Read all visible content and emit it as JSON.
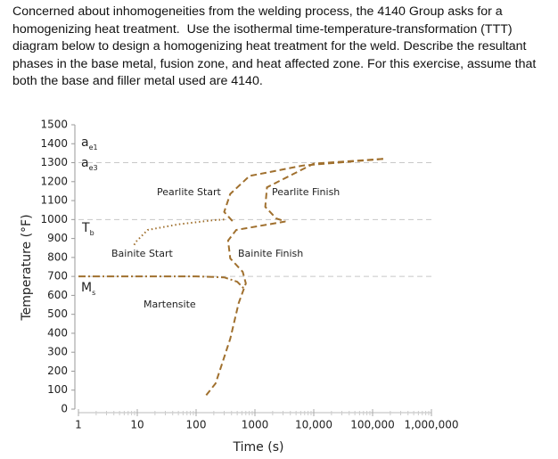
{
  "question": {
    "lines": [
      "Concerned about inhomogeneities from the welding process, the 4140 Group asks for a",
      "homogenizing heat treatment.  Use the isothermal time-temperature-transformation (TTT)",
      "diagram below to design a homogenizing heat treatment for the weld. Describe the resultant",
      "phases in the base metal, fusion zone, and heat affected zone. For this exercise, assume that",
      "both the base and filler metal used are 4140."
    ]
  },
  "chart_data": {
    "type": "line",
    "x_label": "Time (s)",
    "y_label": "Temperature (°F)",
    "x_log": true,
    "xlim": [
      1,
      1000000
    ],
    "xticks": [
      1,
      10,
      100,
      1000,
      {
        "value": 10000,
        "label": "10,000"
      },
      {
        "value": 100000,
        "label": "100,000"
      },
      {
        "value": 1000000,
        "label": "1,000,000"
      }
    ],
    "ylim": [
      0,
      1500
    ],
    "yticks": [
      0,
      100,
      200,
      300,
      400,
      500,
      600,
      700,
      800,
      900,
      1000,
      1100,
      1200,
      1300,
      1400,
      1500
    ],
    "reference_lines": [
      1300,
      1000,
      700
    ],
    "series": [
      {
        "color": "#a0702e",
        "style": "dashed",
        "x": [
          151000,
          6600,
          810,
          380,
          300,
          435
        ],
        "values": [
          1320,
          1285,
          1230,
          1135,
          1040,
          985
        ]
      },
      {
        "color": "#a0702e",
        "style": "dotted",
        "x": [
          300,
          200,
          50,
          15,
          9.3,
          8.7
        ],
        "values": [
          1000,
          997,
          975,
          945,
          880,
          860
        ]
      },
      {
        "color": "#a0702e",
        "style": "dashed",
        "x": [
          151000,
          10000,
          1600,
          1500,
          2300,
          3300,
          480,
          350,
          380,
          620,
          700,
          530,
          380,
          215,
          142
        ],
        "values": [
          1320,
          1295,
          1170,
          1067,
          1006,
          990,
          945,
          889,
          795,
          724,
          663,
          560,
          371,
          136,
          66
        ]
      },
      {
        "color": "#a0702e",
        "style": "dash-dot",
        "x": [
          1,
          100,
          300,
          500,
          680
        ],
        "values": [
          700,
          700,
          695,
          672,
          630
        ]
      }
    ],
    "annotations": [
      {
        "text": "a",
        "sub": "e1"
      },
      {
        "text": "a",
        "sub": "e3"
      },
      {
        "text": "T",
        "sub": "b"
      },
      {
        "text": "M",
        "sub": "s"
      },
      {
        "text": "Pearlite Start"
      },
      {
        "text": "Pearlite Finish"
      },
      {
        "text": "Bainite Start"
      },
      {
        "text": "Bainite Finish"
      },
      {
        "text": "Martensite"
      }
    ]
  }
}
